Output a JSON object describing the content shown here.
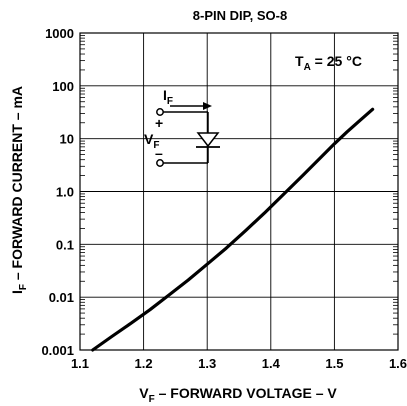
{
  "chart_data": {
    "type": "line",
    "title": "8-PIN DIP, SO-8",
    "xlabel": {
      "main": "V",
      "sub": "F",
      "rest": " – FORWARD VOLTAGE – V"
    },
    "ylabel": {
      "main": "I",
      "sub": "F",
      "rest": " – FORWARD CURRENT – mA"
    },
    "xlim": [
      1.1,
      1.6
    ],
    "ylim": [
      0.001,
      1000
    ],
    "yscale": "log",
    "grid": true,
    "x_ticks": [
      "1.1",
      "1.2",
      "1.3",
      "1.4",
      "1.5",
      "1.6"
    ],
    "y_ticks": [
      "0.001",
      "0.01",
      "0.1",
      "1.0",
      "10",
      "100",
      "1000"
    ],
    "annotation": {
      "main": "T",
      "sub": "A",
      "rest": " = 25 °C"
    },
    "inset": {
      "current_label": {
        "main": "I",
        "sub": "F"
      },
      "voltage_label": {
        "main": "V",
        "sub": "F"
      },
      "plus": "+",
      "minus": "–"
    },
    "series": [
      {
        "x": [
          1.12,
          1.15,
          1.18,
          1.21,
          1.24,
          1.27,
          1.3,
          1.33,
          1.36,
          1.39,
          1.42,
          1.45,
          1.48,
          1.5,
          1.52,
          1.54,
          1.56
        ],
        "y": [
          0.001,
          0.0018,
          0.0032,
          0.0058,
          0.011,
          0.021,
          0.042,
          0.085,
          0.18,
          0.39,
          0.88,
          2.0,
          4.6,
          8.0,
          13.5,
          22,
          36
        ]
      }
    ]
  }
}
